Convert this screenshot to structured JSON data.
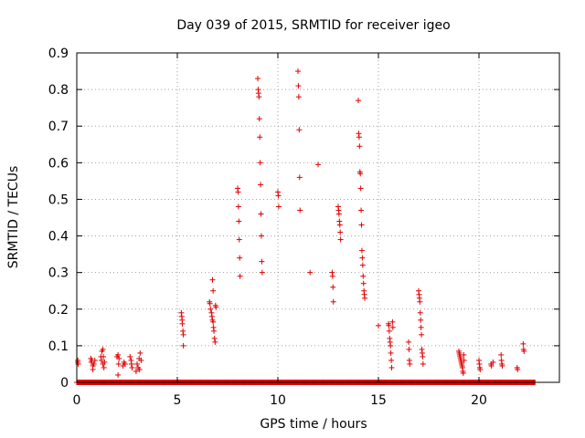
{
  "chart_data": {
    "type": "scatter",
    "title": "Day 039 of 2015, SRMTID for receiver igeo",
    "xlabel": "GPS time / hours",
    "ylabel": "SRMTID / TECUs",
    "xlim": [
      0,
      24
    ],
    "ylim": [
      0,
      0.9
    ],
    "xticks": [
      0,
      5,
      10,
      15,
      20
    ],
    "yticks": [
      0,
      0.1,
      0.2,
      0.3,
      0.4,
      0.5,
      0.6,
      0.7,
      0.8,
      0.9
    ],
    "xtick_labels": [
      "0",
      "5",
      "10",
      "15",
      "20"
    ],
    "ytick_labels": [
      "0",
      "0.1",
      "0.2",
      "0.3",
      "0.4",
      "0.5",
      "0.6",
      "0.7",
      "0.8",
      "0.9"
    ],
    "grid": true,
    "marker": "+",
    "marker_color": "#e00000",
    "zero_range": [
      0,
      22.8
    ],
    "series": [
      {
        "name": "SRMTID",
        "points": [
          [
            0.05,
            0.06
          ],
          [
            0.05,
            0.055
          ],
          [
            0.07,
            0.05
          ],
          [
            0.7,
            0.065
          ],
          [
            0.72,
            0.055
          ],
          [
            0.75,
            0.06
          ],
          [
            0.8,
            0.045
          ],
          [
            0.8,
            0.035
          ],
          [
            0.85,
            0.05
          ],
          [
            0.9,
            0.06
          ],
          [
            1.2,
            0.07
          ],
          [
            1.22,
            0.06
          ],
          [
            1.25,
            0.085
          ],
          [
            1.3,
            0.05
          ],
          [
            1.3,
            0.09
          ],
          [
            1.32,
            0.07
          ],
          [
            1.35,
            0.04
          ],
          [
            1.38,
            0.055
          ],
          [
            2.0,
            0.07
          ],
          [
            2.05,
            0.075
          ],
          [
            2.05,
            0.02
          ],
          [
            2.08,
            0.05
          ],
          [
            2.1,
            0.065
          ],
          [
            2.3,
            0.045
          ],
          [
            2.35,
            0.055
          ],
          [
            2.4,
            0.05
          ],
          [
            2.65,
            0.07
          ],
          [
            2.7,
            0.06
          ],
          [
            2.72,
            0.05
          ],
          [
            2.75,
            0.04
          ],
          [
            2.95,
            0.03
          ],
          [
            3.0,
            0.05
          ],
          [
            3.05,
            0.04
          ],
          [
            3.1,
            0.065
          ],
          [
            3.12,
            0.035
          ],
          [
            3.15,
            0.08
          ],
          [
            3.2,
            0.06
          ],
          [
            5.2,
            0.19
          ],
          [
            5.22,
            0.18
          ],
          [
            5.24,
            0.17
          ],
          [
            5.25,
            0.16
          ],
          [
            5.28,
            0.14
          ],
          [
            5.3,
            0.13
          ],
          [
            5.3,
            0.1
          ],
          [
            6.6,
            0.22
          ],
          [
            6.62,
            0.215
          ],
          [
            6.65,
            0.2
          ],
          [
            6.7,
            0.19
          ],
          [
            6.72,
            0.18
          ],
          [
            6.75,
            0.17
          ],
          [
            6.78,
            0.165
          ],
          [
            6.8,
            0.15
          ],
          [
            6.82,
            0.14
          ],
          [
            6.85,
            0.12
          ],
          [
            6.88,
            0.11
          ],
          [
            6.75,
            0.28
          ],
          [
            6.78,
            0.25
          ],
          [
            6.9,
            0.21
          ],
          [
            6.92,
            0.205
          ],
          [
            8.0,
            0.53
          ],
          [
            8.02,
            0.52
          ],
          [
            8.04,
            0.48
          ],
          [
            8.06,
            0.44
          ],
          [
            8.08,
            0.39
          ],
          [
            8.1,
            0.34
          ],
          [
            8.12,
            0.29
          ],
          [
            9.0,
            0.83
          ],
          [
            9.02,
            0.8
          ],
          [
            9.04,
            0.79
          ],
          [
            9.06,
            0.78
          ],
          [
            9.08,
            0.72
          ],
          [
            9.1,
            0.67
          ],
          [
            9.12,
            0.6
          ],
          [
            9.14,
            0.54
          ],
          [
            9.16,
            0.46
          ],
          [
            9.18,
            0.4
          ],
          [
            9.2,
            0.33
          ],
          [
            9.22,
            0.3
          ],
          [
            10.0,
            0.52
          ],
          [
            10.02,
            0.51
          ],
          [
            10.04,
            0.48
          ],
          [
            11.0,
            0.85
          ],
          [
            11.02,
            0.81
          ],
          [
            11.04,
            0.78
          ],
          [
            11.06,
            0.69
          ],
          [
            11.08,
            0.56
          ],
          [
            11.1,
            0.47
          ],
          [
            11.6,
            0.3
          ],
          [
            12.0,
            0.595
          ],
          [
            12.7,
            0.3
          ],
          [
            12.72,
            0.29
          ],
          [
            12.74,
            0.26
          ],
          [
            12.76,
            0.22
          ],
          [
            13.0,
            0.48
          ],
          [
            13.02,
            0.47
          ],
          [
            13.04,
            0.46
          ],
          [
            13.06,
            0.44
          ],
          [
            13.08,
            0.43
          ],
          [
            13.1,
            0.41
          ],
          [
            13.12,
            0.39
          ],
          [
            14.0,
            0.77
          ],
          [
            14.02,
            0.68
          ],
          [
            14.04,
            0.67
          ],
          [
            14.06,
            0.645
          ],
          [
            14.08,
            0.575
          ],
          [
            14.1,
            0.57
          ],
          [
            14.12,
            0.53
          ],
          [
            14.14,
            0.47
          ],
          [
            14.16,
            0.43
          ],
          [
            14.18,
            0.36
          ],
          [
            14.2,
            0.34
          ],
          [
            14.22,
            0.32
          ],
          [
            14.24,
            0.29
          ],
          [
            14.26,
            0.27
          ],
          [
            14.28,
            0.25
          ],
          [
            14.3,
            0.24
          ],
          [
            14.32,
            0.23
          ],
          [
            15.0,
            0.155
          ],
          [
            15.5,
            0.16
          ],
          [
            15.52,
            0.155
          ],
          [
            15.54,
            0.14
          ],
          [
            15.56,
            0.12
          ],
          [
            15.58,
            0.11
          ],
          [
            15.6,
            0.1
          ],
          [
            15.62,
            0.08
          ],
          [
            15.64,
            0.06
          ],
          [
            15.66,
            0.04
          ],
          [
            15.7,
            0.165
          ],
          [
            15.72,
            0.15
          ],
          [
            16.5,
            0.11
          ],
          [
            16.52,
            0.09
          ],
          [
            16.54,
            0.06
          ],
          [
            16.56,
            0.05
          ],
          [
            17.0,
            0.25
          ],
          [
            17.02,
            0.24
          ],
          [
            17.04,
            0.23
          ],
          [
            17.06,
            0.22
          ],
          [
            17.08,
            0.19
          ],
          [
            17.1,
            0.17
          ],
          [
            17.12,
            0.15
          ],
          [
            17.14,
            0.13
          ],
          [
            17.16,
            0.09
          ],
          [
            17.18,
            0.08
          ],
          [
            17.2,
            0.07
          ],
          [
            17.22,
            0.05
          ],
          [
            19.0,
            0.085
          ],
          [
            19.02,
            0.08
          ],
          [
            19.04,
            0.075
          ],
          [
            19.06,
            0.07
          ],
          [
            19.08,
            0.065
          ],
          [
            19.1,
            0.06
          ],
          [
            19.12,
            0.055
          ],
          [
            19.14,
            0.05
          ],
          [
            19.16,
            0.045
          ],
          [
            19.18,
            0.04
          ],
          [
            19.2,
            0.03
          ],
          [
            19.22,
            0.025
          ],
          [
            19.24,
            0.075
          ],
          [
            19.26,
            0.06
          ],
          [
            20.0,
            0.06
          ],
          [
            20.02,
            0.05
          ],
          [
            20.04,
            0.04
          ],
          [
            20.06,
            0.035
          ],
          [
            20.6,
            0.05
          ],
          [
            20.62,
            0.045
          ],
          [
            20.7,
            0.055
          ],
          [
            21.1,
            0.075
          ],
          [
            21.12,
            0.06
          ],
          [
            21.14,
            0.05
          ],
          [
            21.16,
            0.045
          ],
          [
            21.9,
            0.04
          ],
          [
            21.92,
            0.035
          ],
          [
            22.2,
            0.105
          ],
          [
            22.22,
            0.09
          ],
          [
            22.24,
            0.085
          ]
        ]
      }
    ]
  }
}
